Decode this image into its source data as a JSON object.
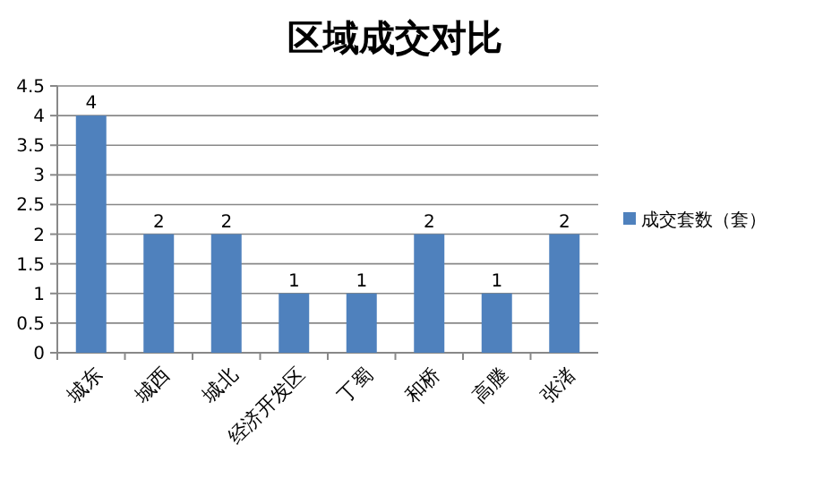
{
  "chart_data": {
    "type": "bar",
    "title": "区域成交对比",
    "categories": [
      "城东",
      "城西",
      "城北",
      "经济开发区",
      "丁蜀",
      "和桥",
      "高塍",
      "张渚"
    ],
    "series": [
      {
        "name": "成交套数（套）",
        "color": "#4f81bd",
        "values": [
          4,
          2,
          2,
          1,
          1,
          2,
          1,
          2
        ]
      }
    ],
    "ylim": [
      0,
      4.5
    ],
    "yticks": [
      0,
      0.5,
      1,
      1.5,
      2,
      2.5,
      3,
      3.5,
      4,
      4.5
    ],
    "grid": "y",
    "legend": "right",
    "data_labels": true
  }
}
